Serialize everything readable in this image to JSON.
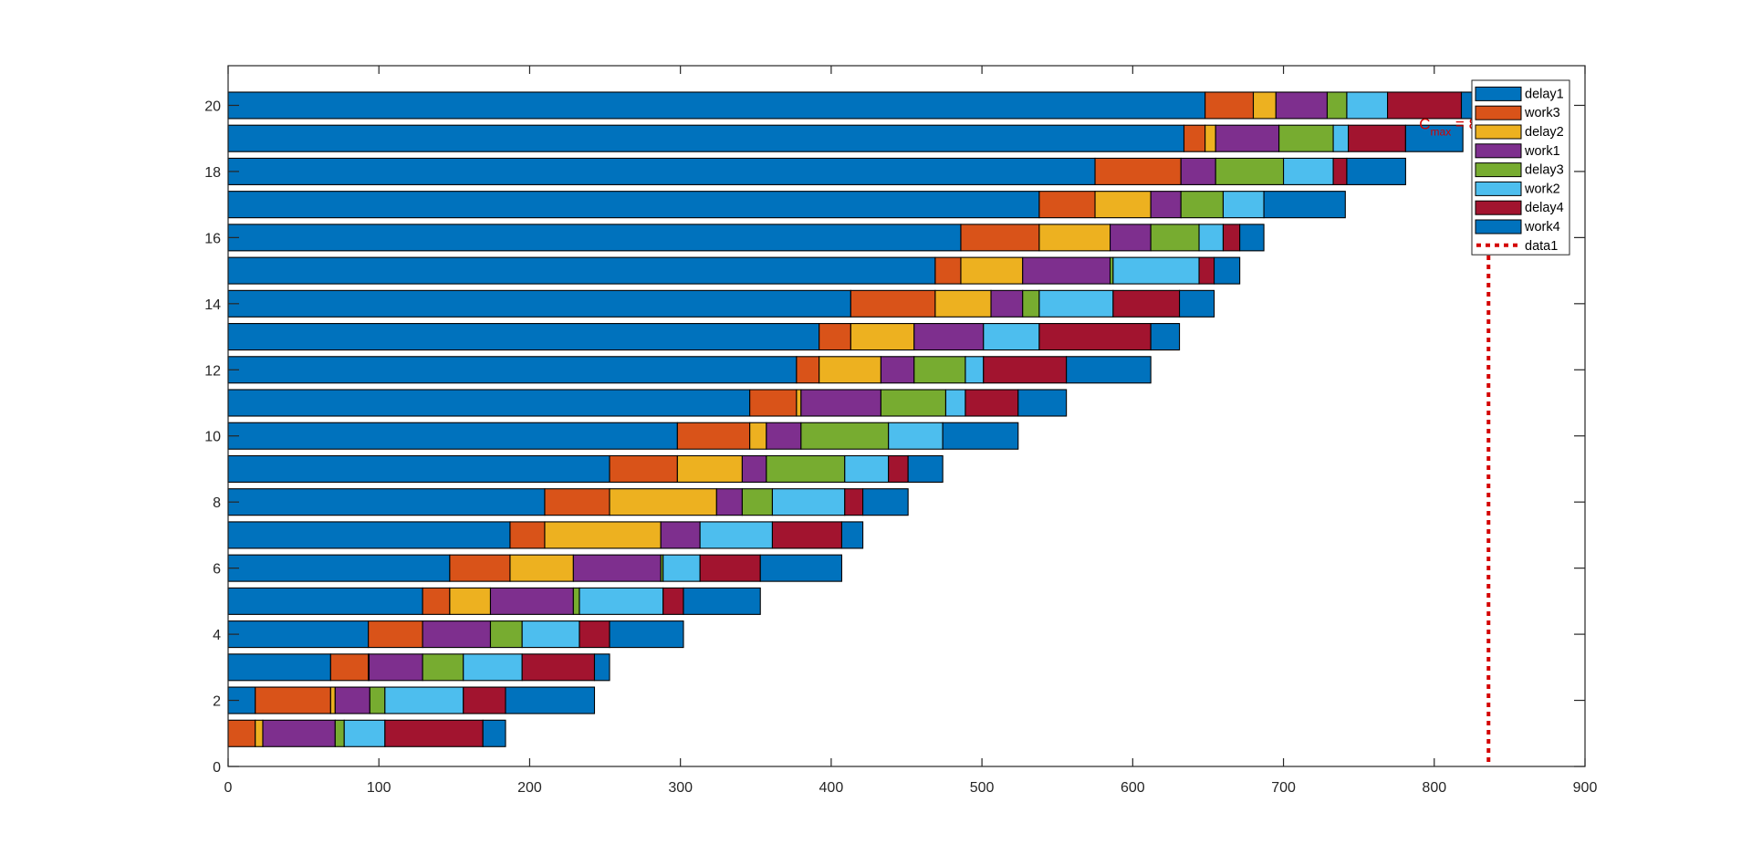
{
  "chart_data": {
    "type": "bar",
    "orientation": "horizontal",
    "stacked": true,
    "title": "",
    "xlabel": "",
    "ylabel": "",
    "xlim": [
      0,
      900
    ],
    "ylim": [
      0,
      21.2
    ],
    "xticks": [
      0,
      100,
      200,
      300,
      400,
      500,
      600,
      700,
      800,
      900
    ],
    "xtick_labels": [
      "0",
      "100",
      "200",
      "300",
      "400",
      "500",
      "600",
      "700",
      "800",
      "900"
    ],
    "yticks": [
      0,
      2,
      4,
      6,
      8,
      10,
      12,
      14,
      16,
      18,
      20
    ],
    "ytick_labels": [
      "0",
      "2",
      "4",
      "6",
      "8",
      "10",
      "12",
      "14",
      "16",
      "18",
      "20"
    ],
    "grid": false,
    "legend_position": "top-right",
    "categories": [
      1,
      2,
      3,
      4,
      5,
      6,
      7,
      8,
      9,
      10,
      11,
      12,
      13,
      14,
      15,
      16,
      17,
      18,
      19,
      20
    ],
    "series": [
      {
        "name": "delay1",
        "color": "#0072BD",
        "values": [
          0,
          18,
          68,
          93,
          129,
          147,
          187,
          210,
          253,
          298,
          346,
          377,
          392,
          413,
          469,
          486,
          538,
          575,
          634,
          648
        ]
      },
      {
        "name": "work3",
        "color": "#D95319",
        "values": [
          18,
          50,
          25,
          36,
          18,
          40,
          23,
          43,
          45,
          48,
          31,
          15,
          21,
          56,
          17,
          52,
          37,
          57,
          14,
          32
        ]
      },
      {
        "name": "delay2",
        "color": "#EDB120",
        "values": [
          5,
          3,
          0.5,
          0,
          27,
          42,
          77,
          71,
          43,
          11,
          3,
          41,
          42,
          37,
          41,
          47,
          37,
          0,
          7,
          15
        ]
      },
      {
        "name": "work1",
        "color": "#7E2F8E",
        "values": [
          48,
          23,
          35.5,
          45,
          55,
          58,
          26,
          17,
          16,
          23,
          53,
          22,
          46,
          21,
          58,
          27,
          20,
          23,
          42,
          34
        ]
      },
      {
        "name": "delay3",
        "color": "#77AC30",
        "values": [
          6,
          10,
          27,
          21,
          4,
          1.5,
          0,
          20,
          52,
          58,
          43,
          34,
          0,
          11,
          2,
          32,
          28,
          45,
          36,
          13
        ]
      },
      {
        "name": "work2",
        "color": "#4DBEEE",
        "values": [
          27,
          52,
          39,
          38,
          55.5,
          24.5,
          48,
          48,
          29,
          36,
          13,
          12,
          37,
          49,
          57,
          16,
          27,
          33,
          10,
          27
        ]
      },
      {
        "name": "delay4",
        "color": "#A2142F",
        "values": [
          65,
          28,
          48,
          20,
          13.5,
          40,
          46,
          12,
          13,
          0,
          35,
          55,
          74,
          44,
          10,
          11,
          0,
          9,
          38,
          49
        ]
      },
      {
        "name": "work4",
        "color": "#0072BD",
        "values": [
          15,
          59,
          10,
          49,
          51,
          54,
          14,
          30,
          23,
          50,
          32,
          56,
          19,
          23,
          17,
          16,
          54,
          39,
          38,
          18
        ]
      }
    ],
    "lines": [
      {
        "name": "data1",
        "style": "dotted",
        "color": "#D40000",
        "x": 836,
        "y_range": [
          0,
          19.6
        ]
      }
    ],
    "annotations": [
      {
        "text": "C",
        "subscript": "max",
        "suffix": " = 8",
        "color": "#D40000",
        "x": 790,
        "y": 19.5
      }
    ],
    "legend_entries": [
      "delay1",
      "work3",
      "delay2",
      "work1",
      "delay3",
      "work2",
      "delay4",
      "work4",
      "data1"
    ]
  }
}
